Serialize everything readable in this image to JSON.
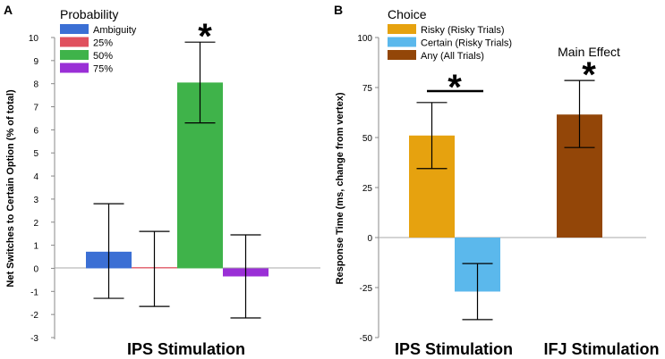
{
  "panels": {
    "a_label": "A",
    "b_label": "B"
  },
  "chart_data": [
    {
      "panel": "A",
      "type": "bar",
      "title": "",
      "xlabel": "IPS Stimulation",
      "ylabel": "Net Switches to Certain Option (% of total)",
      "ylim": [
        -3,
        10
      ],
      "yticks": [
        -3,
        -2,
        -1,
        0,
        1,
        2,
        3,
        4,
        5,
        6,
        7,
        8,
        9,
        10
      ],
      "legend_title": "Probability",
      "legend_position": "top-left",
      "categories": [
        "Ambiguity",
        "25%",
        "50%",
        "75%"
      ],
      "values": [
        0.72,
        0.05,
        8.05,
        -0.35
      ],
      "error_low": [
        -1.3,
        -1.65,
        6.3,
        -2.15
      ],
      "error_high": [
        2.8,
        1.6,
        9.8,
        1.45
      ],
      "colors": [
        "#3b6fd4",
        "#e0505e",
        "#3fb34a",
        "#9a2fd6"
      ],
      "annotation": "*",
      "annotation_category": "50%"
    },
    {
      "panel": "B",
      "type": "bar",
      "title": "",
      "xlabel_groups": [
        "IPS Stimulation",
        "IFJ Stimulation"
      ],
      "ylabel": "Response Time (ms, change from vertex)",
      "ylim": [
        -50,
        100
      ],
      "yticks": [
        -50,
        -25,
        0,
        25,
        50,
        75,
        100
      ],
      "legend_title": "Choice",
      "legend_position": "top-left",
      "categories": [
        "Risky (Risky Trials)",
        "Certain (Risky Trials)",
        "Any (All Trials)"
      ],
      "groups": [
        "IPS Stimulation",
        "IPS Stimulation",
        "IFJ Stimulation"
      ],
      "values": [
        51,
        -27,
        61.5
      ],
      "error_low": [
        34.5,
        -41,
        45
      ],
      "error_high": [
        67.5,
        -13,
        78.5
      ],
      "colors": [
        "#e6a20f",
        "#5bb8ec",
        "#934608"
      ],
      "annotations": [
        {
          "text": "*",
          "target": "between Risky and Certain (IPS)"
        },
        {
          "text": "Main Effect",
          "target": "Any (All Trials)"
        },
        {
          "text": "*",
          "target": "Any (All Trials)"
        }
      ]
    }
  ]
}
